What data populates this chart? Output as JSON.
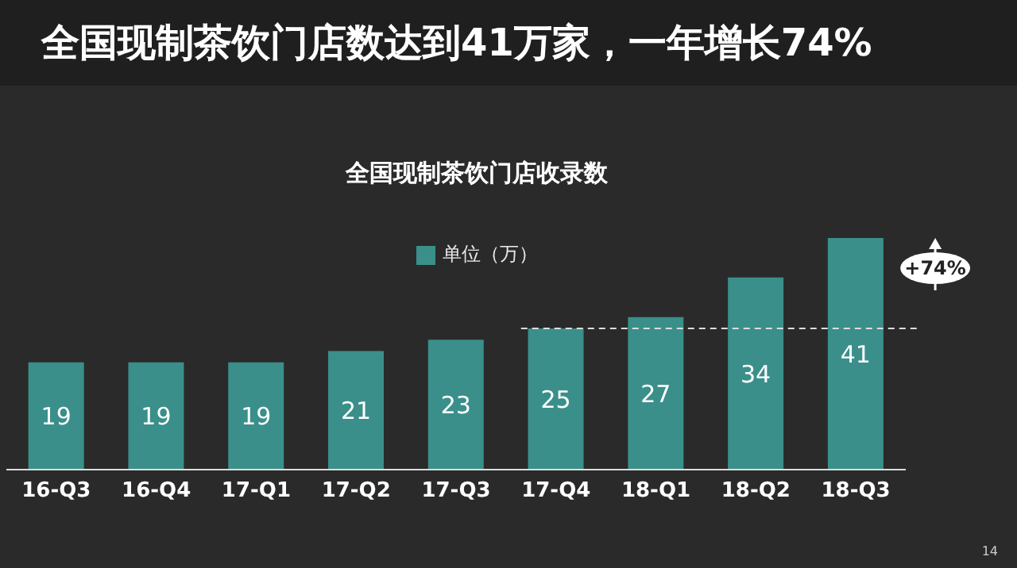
{
  "chart_data": {
    "type": "bar",
    "title": "全国现制茶饮门店数达到41万家，一年增长74%",
    "subtitle": "全国现制茶饮门店收录数",
    "categories": [
      "16-Q3",
      "16-Q4",
      "17-Q1",
      "17-Q2",
      "17-Q3",
      "17-Q4",
      "18-Q1",
      "18-Q2",
      "18-Q3"
    ],
    "series": [
      {
        "name": "单位（万）",
        "color": "#3a8f8a",
        "values": [
          19,
          19,
          19,
          21,
          23,
          25,
          27,
          34,
          41
        ]
      }
    ],
    "data_labels": true,
    "legend": "top",
    "grid": false,
    "ref_lines": [
      {
        "axis": "y",
        "value": 25,
        "line_style": "dashed"
      }
    ],
    "annotations": [
      {
        "text": "+74%",
        "x": "18-Q3",
        "y": 41
      },
      "14"
    ]
  }
}
